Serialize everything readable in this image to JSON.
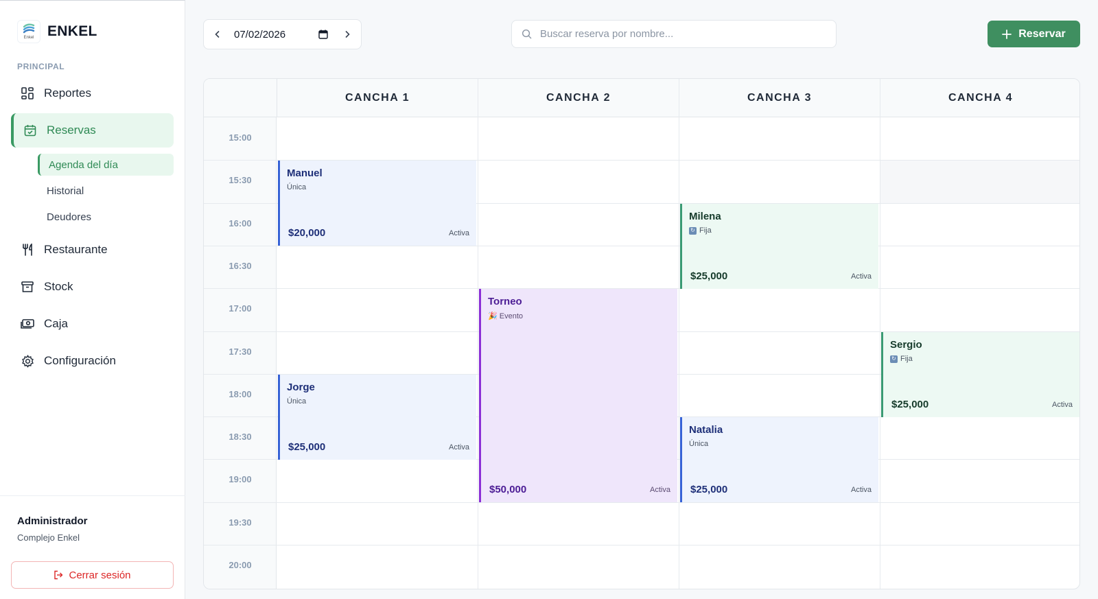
{
  "brand": {
    "name": "ENKEL",
    "logo_caption": "Enkel"
  },
  "sidebar": {
    "section": "PRINCIPAL",
    "items": [
      {
        "label": "Reportes",
        "icon": "dashboard-icon"
      },
      {
        "label": "Reservas",
        "icon": "calendar-check-icon",
        "active": true
      },
      {
        "label": "Restaurante",
        "icon": "fork-knife-icon"
      },
      {
        "label": "Stock",
        "icon": "archive-box-icon"
      },
      {
        "label": "Caja",
        "icon": "cash-icon"
      },
      {
        "label": "Configuración",
        "icon": "gear-icon"
      }
    ],
    "subitems": [
      {
        "label": "Agenda del día",
        "active": true
      },
      {
        "label": "Historial"
      },
      {
        "label": "Deudores"
      }
    ],
    "user": {
      "name": "Administrador",
      "org": "Complejo Enkel"
    },
    "logout_label": "Cerrar sesión"
  },
  "toolbar": {
    "date": "07/02/2026",
    "search_placeholder": "Buscar reserva por nombre...",
    "reserve_label": "Reservar"
  },
  "calendar": {
    "courts": [
      "CANCHA 1",
      "CANCHA 2",
      "CANCHA 3",
      "CANCHA 4"
    ],
    "times": [
      "15:00",
      "15:30",
      "16:00",
      "16:30",
      "17:00",
      "17:30",
      "18:00",
      "18:30",
      "19:00",
      "19:30",
      "20:00"
    ],
    "bookings": [
      {
        "name": "Manuel",
        "type": "Única",
        "kind": "unica",
        "price": "$20,000",
        "status": "Activa",
        "court": 0,
        "start": 1,
        "slots": 2
      },
      {
        "name": "Jorge",
        "type": "Única",
        "kind": "unica",
        "price": "$25,000",
        "status": "Activa",
        "court": 0,
        "start": 6,
        "slots": 2
      },
      {
        "name": "Torneo",
        "type": "🎉 Evento",
        "kind": "evento",
        "price": "$50,000",
        "status": "Activa",
        "court": 1,
        "start": 4,
        "slots": 5
      },
      {
        "name": "Milena",
        "type": "Fija",
        "kind": "fija",
        "price": "$25,000",
        "status": "Activa",
        "court": 2,
        "start": 2,
        "slots": 2
      },
      {
        "name": "Natalia",
        "type": "Única",
        "kind": "unica",
        "price": "$25,000",
        "status": "Activa",
        "court": 2,
        "start": 7,
        "slots": 2
      },
      {
        "name": "Sergio",
        "type": "Fija",
        "kind": "fija",
        "price": "$25,000",
        "status": "Activa",
        "court": 3,
        "start": 5,
        "slots": 2
      }
    ]
  },
  "colors": {
    "accent": "#3f8f60",
    "unica": "#3763d6",
    "fija": "#3a9a73",
    "evento": "#8b2fd6",
    "danger": "#dc2626"
  }
}
